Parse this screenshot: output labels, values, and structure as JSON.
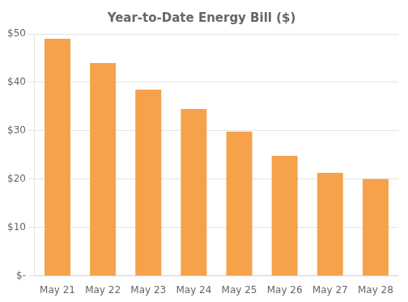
{
  "chart_data": {
    "type": "bar",
    "title": "Year-to-Date Energy Bill ($)",
    "categories": [
      "May 21",
      "May 22",
      "May 23",
      "May 24",
      "May 25",
      "May 26",
      "May 27",
      "May 28"
    ],
    "values": [
      49.0,
      44.0,
      38.5,
      34.5,
      29.8,
      24.8,
      21.3,
      20.0
    ],
    "color": "#F5A24B",
    "ylim": [
      0,
      50
    ],
    "yticks": [
      {
        "value": 0,
        "label": "$-"
      },
      {
        "value": 10,
        "label": "$10"
      },
      {
        "value": 20,
        "label": "$20"
      },
      {
        "value": 30,
        "label": "$30"
      },
      {
        "value": 40,
        "label": "$40"
      },
      {
        "value": 50,
        "label": "$50"
      }
    ],
    "grid": true
  }
}
